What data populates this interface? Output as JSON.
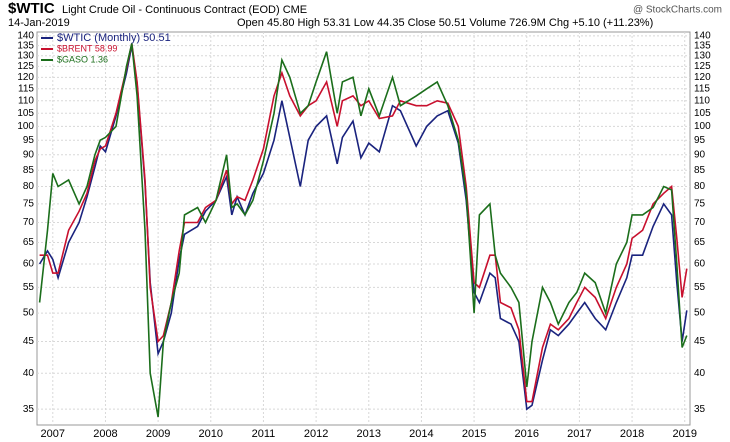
{
  "chart_data": {
    "type": "line",
    "title": "$WTIC",
    "subtitle": "Light Crude Oil - Continuous Contract (EOD) CME",
    "date": "14-Jan-2019",
    "quote": "Open 45.80 High 53.31 Low 44.35 Close 50.51 Volume 726.9M Chg +5.10 (+11.23%)",
    "source": "@ StockCharts.com",
    "log_scale": true,
    "grid": true,
    "legend": "top-left",
    "x": [
      2006.75,
      2006.9,
      2007.0,
      2007.1,
      2007.3,
      2007.5,
      2007.65,
      2007.8,
      2007.9,
      2008.0,
      2008.2,
      2008.4,
      2008.5,
      2008.6,
      2008.75,
      2008.85,
      2009.0,
      2009.1,
      2009.25,
      2009.4,
      2009.5,
      2009.75,
      2009.9,
      2010.1,
      2010.3,
      2010.4,
      2010.5,
      2010.65,
      2010.8,
      2011.0,
      2011.2,
      2011.35,
      2011.5,
      2011.7,
      2011.85,
      2012.0,
      2012.2,
      2012.4,
      2012.5,
      2012.7,
      2012.85,
      2013.0,
      2013.2,
      2013.45,
      2013.6,
      2013.9,
      2014.1,
      2014.3,
      2014.5,
      2014.7,
      2014.85,
      2015.0,
      2015.1,
      2015.3,
      2015.4,
      2015.5,
      2015.7,
      2015.85,
      2016.0,
      2016.1,
      2016.3,
      2016.45,
      2016.6,
      2016.8,
      2016.95,
      2017.1,
      2017.3,
      2017.5,
      2017.7,
      2017.9,
      2018.0,
      2018.2,
      2018.4,
      2018.6,
      2018.75,
      2018.85,
      2018.95,
      2019.04
    ],
    "series": [
      {
        "name": "$WTIC (Monthly) 50.51",
        "color": "#1a237e",
        "values": [
          60,
          63,
          61,
          57,
          65,
          70,
          77,
          86,
          93,
          91,
          104,
          122,
          135,
          117,
          81,
          56,
          43,
          45,
          50,
          61,
          67,
          69,
          73,
          76,
          83,
          72,
          77,
          72,
          78,
          84,
          95,
          110,
          96,
          80,
          95,
          100,
          104,
          87,
          96,
          102,
          89,
          94,
          91,
          108,
          106,
          93,
          100,
          104,
          106,
          94,
          76,
          54,
          52,
          58,
          57,
          49,
          48,
          45,
          35,
          35.5,
          42,
          47,
          46,
          48,
          50,
          52,
          49,
          47,
          52,
          57,
          62,
          62,
          69,
          75,
          72,
          56,
          45,
          50.51
        ]
      },
      {
        "name": "$BRENT 58.99",
        "color": "#c8102e",
        "values": [
          62,
          62,
          58,
          58,
          68,
          73,
          78,
          88,
          92,
          93,
          105,
          124,
          136,
          118,
          82,
          55,
          45,
          46,
          52,
          63,
          70,
          70,
          74,
          76,
          85,
          75,
          77,
          76,
          82,
          92,
          112,
          122,
          112,
          104,
          108,
          110,
          118,
          100,
          110,
          112,
          108,
          110,
          103,
          104,
          110,
          108,
          108,
          110,
          109,
          100,
          80,
          56,
          55,
          62,
          62,
          52,
          51,
          47,
          36,
          36,
          44,
          48,
          47,
          49,
          52,
          55,
          53,
          49,
          55,
          60,
          66,
          68,
          75,
          78,
          80,
          66,
          53,
          58.99
        ]
      },
      {
        "name": "$GASO 1.36",
        "color": "#1b6e1b",
        "values": [
          52,
          68,
          84,
          80,
          82,
          75,
          80,
          90,
          95,
          96,
          100,
          125,
          136,
          112,
          68,
          40,
          34,
          45,
          52,
          58,
          72,
          74,
          70,
          76,
          90,
          74,
          75,
          72,
          76,
          88,
          105,
          128,
          120,
          105,
          108,
          118,
          132,
          105,
          118,
          120,
          104,
          115,
          104,
          120,
          108,
          112,
          115,
          118,
          108,
          95,
          78,
          50,
          72,
          75,
          62,
          58,
          55,
          52,
          38,
          45,
          55,
          52,
          48,
          52,
          54,
          58,
          56,
          50,
          60,
          65,
          72,
          72,
          74,
          80,
          79,
          60,
          44,
          46
        ]
      }
    ],
    "xlim": [
      2006.7,
      2019.1
    ],
    "xticks": [
      2007,
      2008,
      2009,
      2010,
      2011,
      2012,
      2013,
      2014,
      2015,
      2016,
      2017,
      2018,
      2019
    ],
    "ylim": [
      33,
      142
    ],
    "yticks": [
      35,
      40,
      45,
      50,
      55,
      60,
      65,
      70,
      75,
      80,
      85,
      90,
      95,
      100,
      105,
      110,
      115,
      120,
      125,
      130,
      135,
      140
    ]
  }
}
